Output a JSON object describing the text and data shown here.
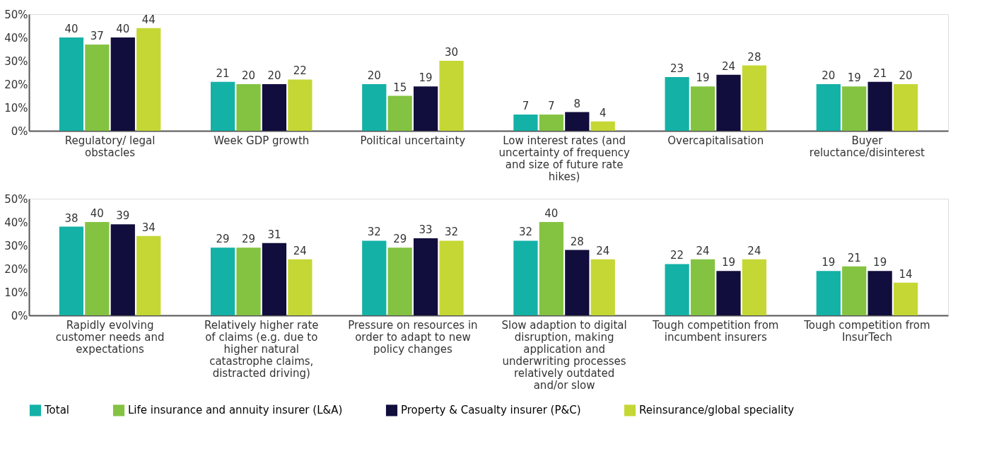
{
  "chart_data": [
    {
      "type": "bar",
      "categories": [
        "Regulatory/ legal obstacles",
        "Week GDP growth",
        "Political uncertainty",
        "Low interest rates (and uncertainty of frequency and size of future rate hikes)",
        "Overcapitalisation",
        "Buyer reluctance/disinterest"
      ],
      "series": [
        {
          "name": "Total",
          "color": "#14b1a7",
          "values": [
            40,
            21,
            20,
            7,
            23,
            20
          ]
        },
        {
          "name": "Life insurance and annuity insurer (L&A)",
          "color": "#84c341",
          "values": [
            37,
            20,
            15,
            7,
            19,
            19
          ]
        },
        {
          "name": "Property & Casualty insurer (P&C)",
          "color": "#110d3c",
          "values": [
            40,
            20,
            19,
            8,
            24,
            21
          ]
        },
        {
          "name": "Reinsurance/global speciality",
          "color": "#c5d734",
          "values": [
            44,
            22,
            30,
            4,
            28,
            20
          ]
        }
      ],
      "ylim": [
        0,
        50
      ],
      "yticks": [
        {
          "value": 0,
          "label": "0%"
        },
        {
          "value": 10,
          "label": "10%"
        },
        {
          "value": 20,
          "label": "20%"
        },
        {
          "value": 30,
          "label": "30%"
        },
        {
          "value": 40,
          "label": "40%"
        },
        {
          "value": 50,
          "label": "50%"
        }
      ],
      "data_labels": true,
      "grid": false,
      "legend": "bottom left"
    },
    {
      "type": "bar",
      "categories": [
        "Rapidly evolving customer needs and expectations",
        "Relatively higher rate of claims (e.g. due to higher natural catastrophe claims, distracted driving)",
        "Pressure on resources in order to adapt to new policy changes",
        "Slow adaption to digital disruption, making application and underwriting processes relatively outdated and/or slow",
        "Tough competition from incumbent insurers",
        "Tough competition from InsurTech"
      ],
      "series": [
        {
          "name": "Total",
          "color": "#14b1a7",
          "values": [
            38,
            29,
            32,
            32,
            22,
            19
          ]
        },
        {
          "name": "Life insurance and annuity insurer (L&A)",
          "color": "#84c341",
          "values": [
            40,
            29,
            29,
            40,
            24,
            21
          ]
        },
        {
          "name": "Property & Casualty insurer (P&C)",
          "color": "#110d3c",
          "values": [
            39,
            31,
            33,
            28,
            19,
            19
          ]
        },
        {
          "name": "Reinsurance/global speciality",
          "color": "#c5d734",
          "values": [
            34,
            24,
            32,
            24,
            24,
            14
          ]
        }
      ],
      "ylim": [
        0,
        50
      ],
      "yticks": [
        {
          "value": 0,
          "label": "0%"
        },
        {
          "value": 10,
          "label": "10%"
        },
        {
          "value": 20,
          "label": "20%"
        },
        {
          "value": 30,
          "label": "30%"
        },
        {
          "value": 40,
          "label": "40%"
        },
        {
          "value": 50,
          "label": "50%"
        }
      ],
      "data_labels": true,
      "grid": false,
      "legend": "bottom left"
    }
  ]
}
